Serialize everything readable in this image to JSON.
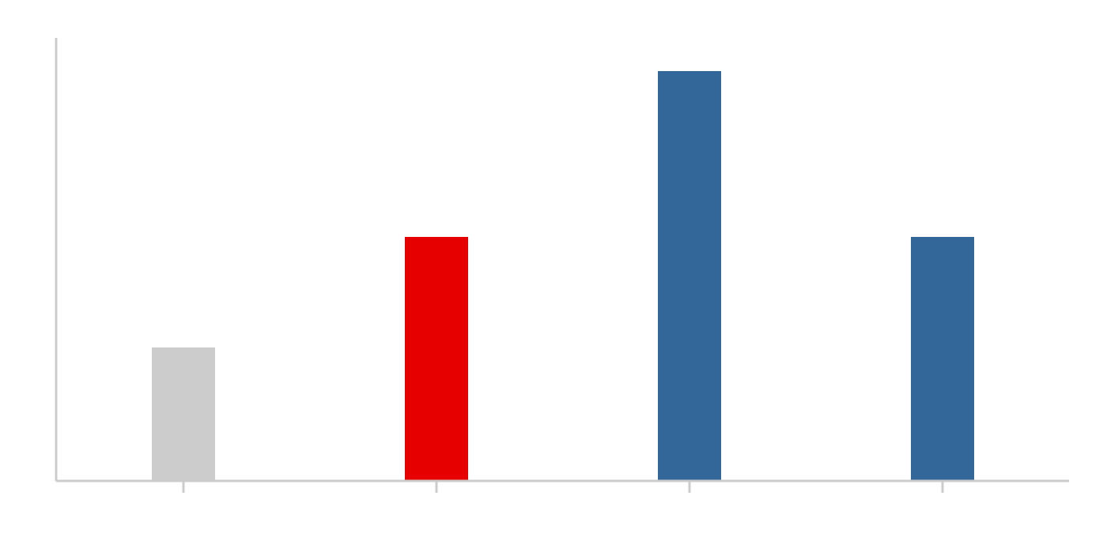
{
  "chart_data": {
    "type": "bar",
    "categories": [
      "",
      "",
      "",
      ""
    ],
    "values": [
      24,
      44,
      74,
      44
    ],
    "ylim": [
      0,
      80
    ],
    "colors": [
      "#cccccc",
      "#e60000",
      "#336699",
      "#336699"
    ],
    "axis_color": "#cccccc",
    "grid": false,
    "legend": "none"
  }
}
